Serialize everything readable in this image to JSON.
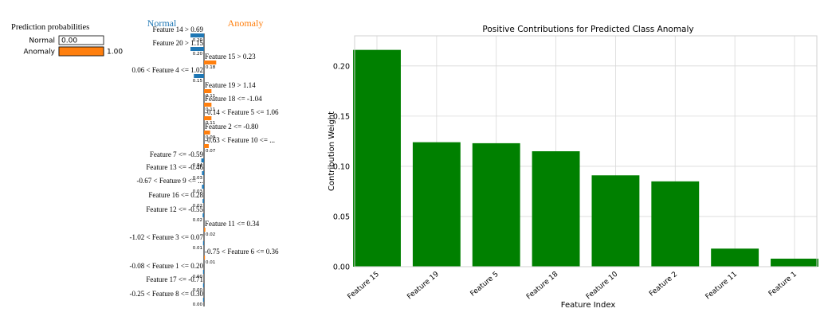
{
  "prediction_panel": {
    "title": "Prediction probabilities",
    "rows": [
      {
        "label": "Normal",
        "value": 0.0,
        "value_text": "0.00",
        "color": "#1f77b4"
      },
      {
        "label": "Anomaly",
        "value": 1.0,
        "value_text": "1.00",
        "color": "#ff7f0e"
      }
    ]
  },
  "explanation": {
    "negative_label": "Normal",
    "positive_label": "Anomaly",
    "negative_color": "#1f77b4",
    "positive_color": "#ff7f0e",
    "features": [
      {
        "condition": "Feature 14 > 0.69",
        "weight": 0.2,
        "weight_text": "0.20",
        "side": "Normal"
      },
      {
        "condition": "Feature 20 > 1.15",
        "weight": 0.2,
        "weight_text": "0.20",
        "side": "Normal"
      },
      {
        "condition": "Feature 15 > 0.23",
        "weight": 0.18,
        "weight_text": "0.18",
        "side": "Anomaly"
      },
      {
        "condition": "0.06 < Feature 4 <= 1.02",
        "weight": 0.15,
        "weight_text": "0.15",
        "side": "Normal"
      },
      {
        "condition": "Feature 19 > 1.14",
        "weight": 0.11,
        "weight_text": "0.11",
        "side": "Anomaly"
      },
      {
        "condition": "Feature 18 <= -1.04",
        "weight": 0.11,
        "weight_text": "0.11",
        "side": "Anomaly"
      },
      {
        "condition": "-0.14 < Feature 5 <= 1.06",
        "weight": 0.11,
        "weight_text": "0.11",
        "side": "Anomaly"
      },
      {
        "condition": "Feature 2 <= -0.80",
        "weight": 0.09,
        "weight_text": "0.09",
        "side": "Anomaly"
      },
      {
        "condition": "-0.63 < Feature 10 <= ...",
        "weight": 0.07,
        "weight_text": "0.07",
        "side": "Anomaly"
      },
      {
        "condition": "Feature 7 <= -0.59",
        "weight": 0.04,
        "weight_text": "0.04",
        "side": "Normal"
      },
      {
        "condition": "Feature 13 <= -0.46",
        "weight": 0.03,
        "weight_text": "0.03",
        "side": "Normal"
      },
      {
        "condition": "-0.67 < Feature 9 <= ...",
        "weight": 0.03,
        "weight_text": "0.03",
        "side": "Normal"
      },
      {
        "condition": "Feature 16 <= 0.28",
        "weight": 0.02,
        "weight_text": "0.02",
        "side": "Normal"
      },
      {
        "condition": "Feature 12 <= -0.55",
        "weight": 0.02,
        "weight_text": "0.02",
        "side": "Normal"
      },
      {
        "condition": "Feature 11 <= 0.34",
        "weight": 0.02,
        "weight_text": "0.02",
        "side": "Anomaly"
      },
      {
        "condition": "-1.02 < Feature 3 <= 0.07",
        "weight": 0.01,
        "weight_text": "0.01",
        "side": "Normal"
      },
      {
        "condition": "-0.75 < Feature 6 <= 0.36",
        "weight": 0.01,
        "weight_text": "0.01",
        "side": "Anomaly"
      },
      {
        "condition": "-0.08 < Feature 1 <= 0.20",
        "weight": 0.0,
        "weight_text": "0.00",
        "side": "Normal"
      },
      {
        "condition": "Feature 17 <= -0.71",
        "weight": 0.0,
        "weight_text": "0.00",
        "side": "Normal"
      },
      {
        "condition": "-0.25 < Feature 8 <= 0.30",
        "weight": 0.0,
        "weight_text": "0.00",
        "side": "Normal"
      }
    ]
  },
  "chart_data": {
    "type": "bar",
    "title": "Positive Contributions for Predicted Class Anomaly",
    "xlabel": "Feature Index",
    "ylabel": "Contribution Weight",
    "categories": [
      "Feature 15",
      "Feature 19",
      "Feature 5",
      "Feature 18",
      "Feature 10",
      "Feature 2",
      "Feature 11",
      "Feature 1"
    ],
    "values": [
      0.216,
      0.124,
      0.123,
      0.115,
      0.091,
      0.085,
      0.018,
      0.008
    ],
    "ylim": [
      0,
      0.23
    ],
    "yticks": [
      0.0,
      0.05,
      0.1,
      0.15,
      0.2
    ],
    "ytick_labels": [
      "0.00",
      "0.05",
      "0.10",
      "0.15",
      "0.20"
    ],
    "grid": true,
    "bar_color": "#008000"
  }
}
